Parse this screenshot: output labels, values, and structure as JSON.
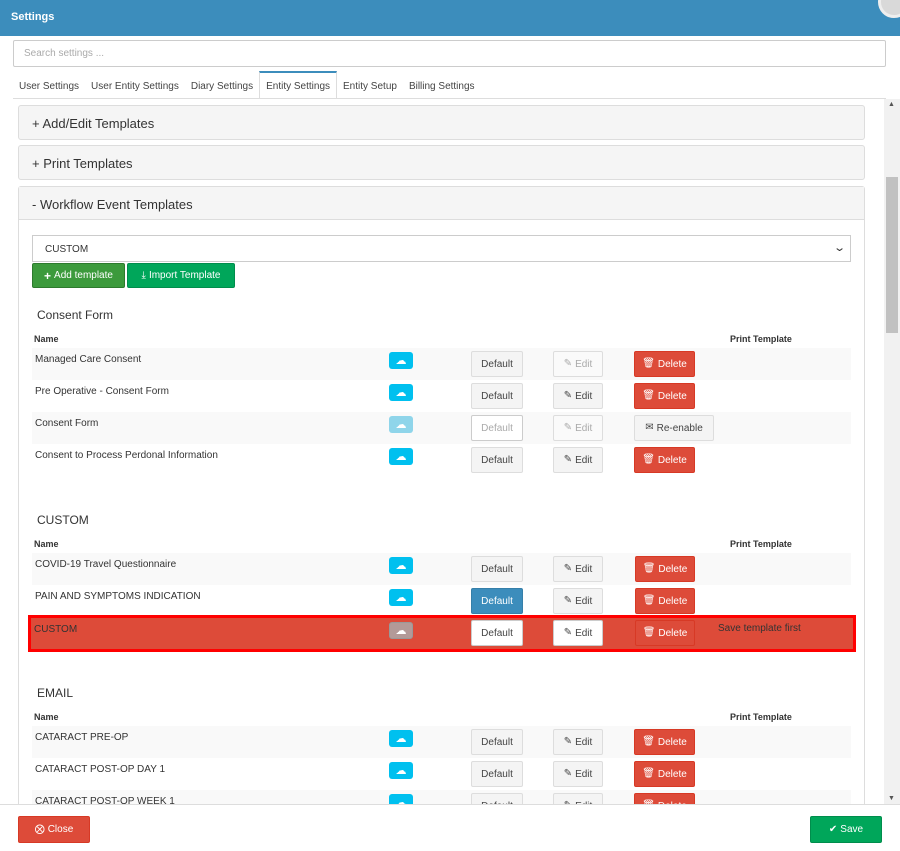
{
  "window": {
    "title": "Settings"
  },
  "search": {
    "placeholder": "Search settings ..."
  },
  "tabs": [
    {
      "label": "User Settings"
    },
    {
      "label": "User Entity Settings"
    },
    {
      "label": "Diary Settings"
    },
    {
      "label": "Entity Settings"
    },
    {
      "label": "Entity Setup"
    },
    {
      "label": "Billing Settings"
    }
  ],
  "panels": {
    "add_edit": "+ Add/Edit Templates",
    "print": "+ Print Templates",
    "workflow": "- Workflow Event Templates"
  },
  "workflow": {
    "selected": "CUSTOM",
    "add_template": "Add template",
    "import_template": "Import Template"
  },
  "columns": {
    "name": "Name",
    "print_template": "Print Template"
  },
  "actions": {
    "default": "Default",
    "edit": "Edit",
    "delete": "Delete",
    "reenable": "Re-enable"
  },
  "sections": [
    {
      "title": "Consent Form",
      "rows": [
        {
          "name": "Managed Care Consent"
        },
        {
          "name": "Pre Operative - Consent Form"
        },
        {
          "name": "Consent Form"
        },
        {
          "name": "Consent to Process Perdonal Information"
        }
      ]
    },
    {
      "title": "CUSTOM",
      "rows": [
        {
          "name": "COVID-19 Travel Questionnaire"
        },
        {
          "name": "PAIN AND SYMPTOMS INDICATION"
        },
        {
          "name": "CUSTOM",
          "note": "Save template first"
        }
      ]
    },
    {
      "title": "EMAIL",
      "rows": [
        {
          "name": "CATARACT PRE-OP"
        },
        {
          "name": "CATARACT POST-OP DAY 1"
        },
        {
          "name": "CATARACT POST-OP WEEK 1"
        }
      ]
    }
  ],
  "footer": {
    "close": "Close",
    "save": "Save"
  },
  "icons": {
    "upload": "cloud-upload-icon",
    "edit": "edit-icon",
    "delete": "trash-icon",
    "envelope": "envelope-icon",
    "plus": "plus-icon",
    "download": "download-icon",
    "close": "times-circle-icon",
    "save": "check-circle-icon",
    "chevron": "chevron-down-icon"
  },
  "colors": {
    "header": "#3c8dbc",
    "danger": "#dd4b39",
    "success": "#00a65a",
    "info": "#00c0ef",
    "primary": "#3c8dbc",
    "highlight_border": "#ff0000"
  }
}
